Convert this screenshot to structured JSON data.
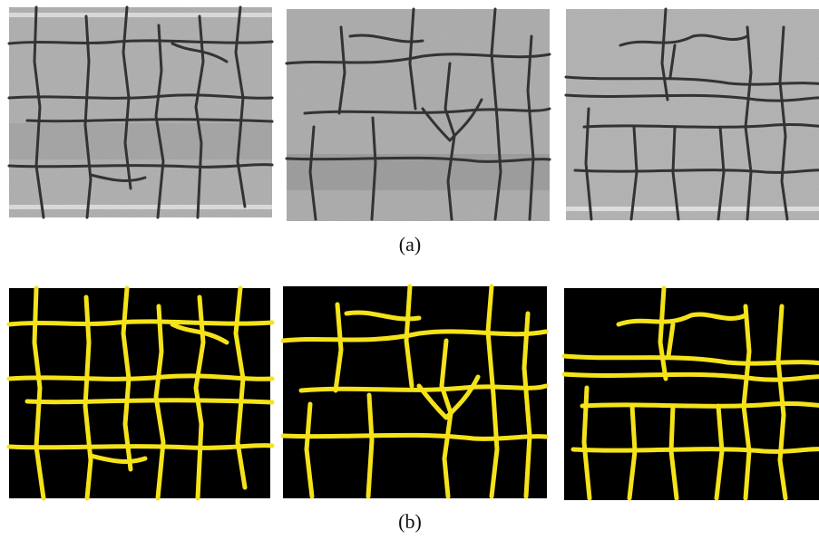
{
  "figure": {
    "labels": [
      "(a)",
      "(b)"
    ]
  }
}
